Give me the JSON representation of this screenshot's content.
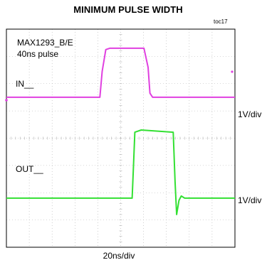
{
  "title": "MINIMUM PULSE WIDTH",
  "tag": "toc17",
  "annotations": {
    "device": "MAX1293_B/E",
    "pulse": "40ns pulse"
  },
  "scales": {
    "x": "20ns/div",
    "in": "1V/div",
    "out": "1V/div"
  },
  "colors": {
    "in_trace": "#e040e0",
    "out_trace": "#33e033",
    "grid": "#b0b0b0",
    "frame": "#000000"
  },
  "chart_data": {
    "type": "line",
    "title": "MINIMUM PULSE WIDTH",
    "xlabel": "20ns/div",
    "ylabel": "",
    "xlim": [
      0,
      10
    ],
    "ylim": [
      0,
      8
    ],
    "x_unit": "div",
    "y_unit": "div",
    "grid": true,
    "series": [
      {
        "name": "IN__",
        "scale": "1V/div",
        "color": "#e040e0",
        "points": [
          [
            0,
            5.5
          ],
          [
            4.09,
            5.5
          ],
          [
            4.19,
            6.45
          ],
          [
            4.35,
            7.25
          ],
          [
            4.52,
            7.3
          ],
          [
            6.02,
            7.3
          ],
          [
            6.2,
            6.6
          ],
          [
            6.28,
            5.65
          ],
          [
            6.4,
            5.5
          ],
          [
            10,
            5.5
          ]
        ]
      },
      {
        "name": "OUT__",
        "scale": "1V/div",
        "color": "#33e033",
        "points": [
          [
            0,
            1.8
          ],
          [
            5.5,
            1.8
          ],
          [
            5.55,
            2.8
          ],
          [
            5.62,
            4.22
          ],
          [
            5.9,
            4.3
          ],
          [
            7.3,
            4.22
          ],
          [
            7.38,
            2.4
          ],
          [
            7.45,
            1.2
          ],
          [
            7.55,
            1.72
          ],
          [
            7.65,
            1.88
          ],
          [
            7.8,
            1.8
          ],
          [
            10,
            1.8
          ]
        ]
      }
    ]
  }
}
